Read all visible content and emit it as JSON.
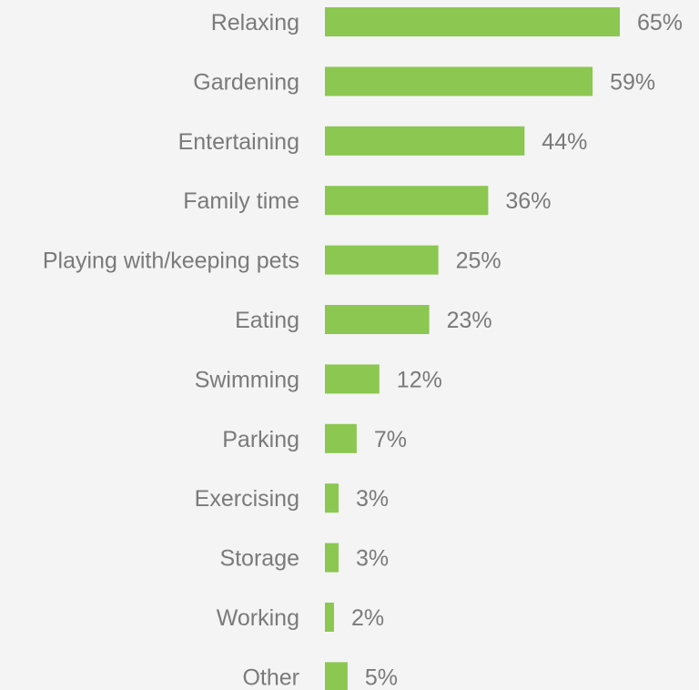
{
  "chart_data": {
    "type": "bar",
    "orientation": "horizontal",
    "categories": [
      "Relaxing",
      "Gardening",
      "Entertaining",
      "Family time",
      "Playing with/keeping pets",
      "Eating",
      "Swimming",
      "Parking",
      "Exercising",
      "Storage",
      "Working",
      "Other"
    ],
    "values": [
      65,
      59,
      44,
      36,
      25,
      23,
      12,
      7,
      3,
      3,
      2,
      5
    ],
    "value_labels": [
      "65%",
      "59%",
      "44%",
      "36%",
      "25%",
      "23%",
      "12%",
      "7%",
      "3%",
      "3%",
      "2%",
      "5%"
    ],
    "title": "",
    "xlabel": "",
    "ylabel": "",
    "xlim": [
      0,
      65
    ],
    "grid": false,
    "legend": "none",
    "bar_color": "#8bc751",
    "text_color": "#7a7a7a",
    "background": "#f4f4f4"
  }
}
